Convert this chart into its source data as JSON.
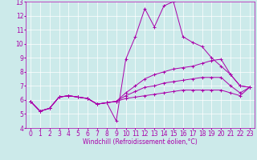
{
  "title": "",
  "xlabel": "Windchill (Refroidissement éolien,°C)",
  "ylabel": "",
  "background_color": "#cceaea",
  "line_color": "#aa00aa",
  "xlim": [
    -0.5,
    23.5
  ],
  "ylim": [
    4,
    13
  ],
  "x_ticks": [
    0,
    1,
    2,
    3,
    4,
    5,
    6,
    7,
    8,
    9,
    10,
    11,
    12,
    13,
    14,
    15,
    16,
    17,
    18,
    19,
    20,
    21,
    22,
    23
  ],
  "y_ticks": [
    4,
    5,
    6,
    7,
    8,
    9,
    10,
    11,
    12,
    13
  ],
  "series": [
    [
      5.9,
      5.2,
      5.4,
      6.2,
      6.3,
      6.2,
      6.1,
      5.7,
      5.8,
      4.5,
      8.9,
      10.5,
      12.5,
      11.2,
      12.7,
      13.0,
      10.5,
      10.1,
      9.8,
      9.0,
      8.4,
      7.8,
      7.0,
      6.9
    ],
    [
      5.9,
      5.2,
      5.4,
      6.2,
      6.3,
      6.2,
      6.1,
      5.7,
      5.8,
      5.9,
      6.5,
      7.0,
      7.5,
      7.8,
      8.0,
      8.2,
      8.3,
      8.4,
      8.6,
      8.8,
      8.9,
      7.8,
      7.0,
      6.9
    ],
    [
      5.9,
      5.2,
      5.4,
      6.2,
      6.3,
      6.2,
      6.1,
      5.7,
      5.8,
      5.9,
      6.3,
      6.6,
      6.9,
      7.0,
      7.2,
      7.3,
      7.4,
      7.5,
      7.6,
      7.6,
      7.6,
      7.0,
      6.5,
      6.9
    ],
    [
      5.9,
      5.2,
      5.4,
      6.2,
      6.3,
      6.2,
      6.1,
      5.7,
      5.8,
      5.9,
      6.1,
      6.2,
      6.3,
      6.4,
      6.5,
      6.6,
      6.7,
      6.7,
      6.7,
      6.7,
      6.7,
      6.5,
      6.3,
      6.9
    ]
  ],
  "grid_color": "#ffffff",
  "tick_fontsize": 5.5,
  "xlabel_fontsize": 5.5,
  "linewidth": 0.7,
  "markersize": 2.5
}
